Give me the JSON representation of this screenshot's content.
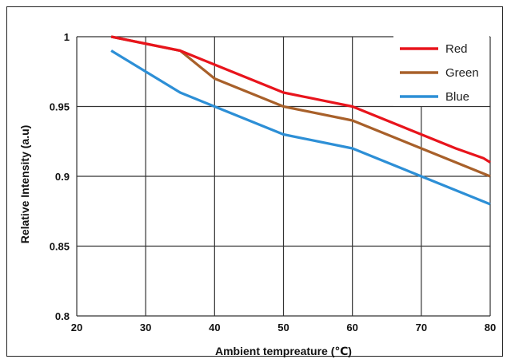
{
  "chart_data": {
    "type": "line",
    "title": "",
    "xlabel": "Ambient tempreature (℃)",
    "ylabel": "Relative Intensity (a.u)",
    "xlim": [
      20,
      80
    ],
    "ylim": [
      0.8,
      1
    ],
    "x_ticks": [
      "20",
      "30",
      "40",
      "50",
      "60",
      "70",
      "80"
    ],
    "y_ticks": [
      "0.8",
      "0.85",
      "0.9",
      "0.95",
      "1"
    ],
    "grid": true,
    "legend_position": "top-right",
    "series": [
      {
        "name": "Red",
        "color": "#e8141c",
        "x": [
          25,
          35,
          40,
          50,
          60,
          70,
          75,
          79,
          80
        ],
        "y": [
          1.0,
          0.99,
          0.98,
          0.96,
          0.95,
          0.93,
          0.92,
          0.913,
          0.91
        ]
      },
      {
        "name": "Green",
        "color": "#a8602a",
        "x": [
          25,
          30,
          35,
          40,
          50,
          60,
          70,
          80
        ],
        "y": [
          1.0,
          0.995,
          0.99,
          0.97,
          0.95,
          0.94,
          0.92,
          0.9
        ]
      },
      {
        "name": "Blue",
        "color": "#2d8fd6",
        "x": [
          25,
          30,
          35,
          40,
          50,
          60,
          70,
          80
        ],
        "y": [
          0.99,
          0.975,
          0.96,
          0.95,
          0.93,
          0.92,
          0.9,
          0.88
        ]
      }
    ]
  }
}
